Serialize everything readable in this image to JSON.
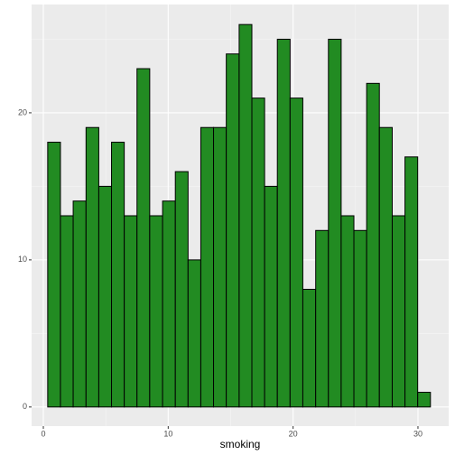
{
  "chart_data": {
    "type": "histogram",
    "xlabel": "smoking",
    "bins": [
      0.35,
      1.37,
      2.39,
      3.42,
      4.44,
      5.46,
      6.48,
      7.5,
      8.52,
      9.55,
      10.57,
      11.59,
      12.61,
      13.63,
      14.65,
      15.68,
      16.7,
      17.72,
      18.74,
      19.76,
      20.78,
      21.81,
      22.83,
      23.85,
      24.87,
      25.89,
      26.91,
      27.94,
      28.96,
      29.98,
      31.0
    ],
    "values": [
      18,
      13,
      14,
      19,
      15,
      18,
      13,
      23,
      13,
      14,
      16,
      10,
      19,
      19,
      24,
      26,
      21,
      15,
      25,
      21,
      8,
      12,
      25,
      13,
      12,
      22,
      19,
      13,
      17,
      1
    ],
    "color": "#228b22",
    "edgecolor": "#000000",
    "xlim": [
      -0.94,
      32.46
    ],
    "xticks": [
      0,
      10,
      20,
      30
    ],
    "ylim": [
      -1.3,
      27.36
    ],
    "yticks": [
      0,
      10,
      20
    ],
    "grid": true
  }
}
